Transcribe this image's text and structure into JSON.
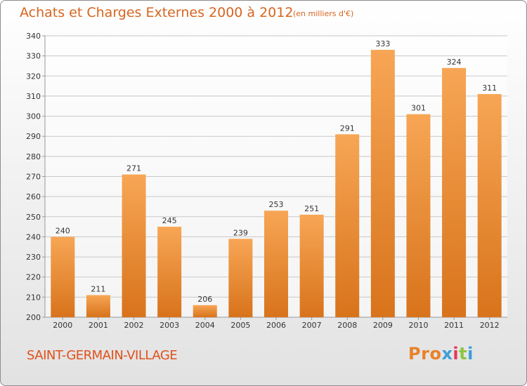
{
  "header": {
    "title": "Achats et Charges Externes 2000 à 2012",
    "unit": "(en milliers d'€)"
  },
  "footer": {
    "commune": "SAINT-GERMAIN-VILLAGE",
    "logo": "Proxiti"
  },
  "colors": {
    "bar_top": "#f7a655",
    "bar_bottom": "#d8731b",
    "title": "#d6651f",
    "commune": "#e0501b",
    "logo_letters": [
      "#e8822a",
      "#e8822a",
      "#e8822a",
      "#3d9fd8",
      "#e23a57",
      "#8cc63f",
      "#3d9fd8"
    ]
  },
  "chart_data": {
    "type": "bar",
    "categories": [
      "2000",
      "2001",
      "2002",
      "2003",
      "2004",
      "2005",
      "2006",
      "2007",
      "2008",
      "2009",
      "2010",
      "2011",
      "2012"
    ],
    "values": [
      240,
      211,
      271,
      245,
      206,
      239,
      253,
      251,
      291,
      333,
      301,
      324,
      311
    ],
    "ylim": [
      200,
      340
    ],
    "yticks": [
      200,
      210,
      220,
      230,
      240,
      250,
      260,
      270,
      280,
      290,
      300,
      310,
      320,
      330,
      340
    ],
    "grid": true
  }
}
